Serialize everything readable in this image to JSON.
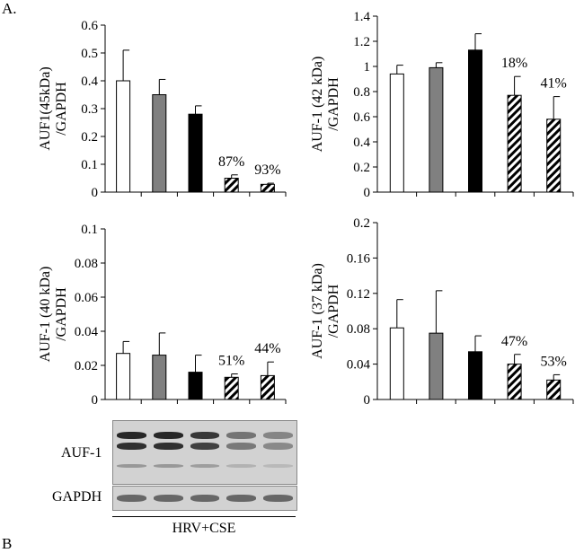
{
  "figure": {
    "panel_label": "A.",
    "next_panel_label": "B"
  },
  "colors": {
    "white": "#ffffff",
    "gray": "#808080",
    "black": "#000000",
    "hatched": "diagonal-hatch"
  },
  "chart_data": [
    {
      "type": "bar",
      "ylabel": [
        "AUF1(45kDa)",
        "/GAPDH"
      ],
      "ylim": [
        0,
        0.6
      ],
      "yticks": [
        "0",
        "0.1",
        "0.2",
        "0.3",
        "0.4",
        "0.5",
        "0.6"
      ],
      "values": [
        0.4,
        0.35,
        0.28,
        0.05,
        0.028
      ],
      "errors": [
        0.11,
        0.055,
        0.03,
        0.012,
        0.004
      ],
      "fills": [
        "white",
        "gray",
        "black",
        "hatched",
        "hatched"
      ],
      "annotations": [
        "",
        "",
        "",
        "87%",
        "93%"
      ]
    },
    {
      "type": "bar",
      "ylabel": [
        "AUF-1 (42 kDa)",
        "/GAPDH"
      ],
      "ylim": [
        0,
        1.4
      ],
      "yticks": [
        "0",
        "0.2",
        "0.4",
        "0.6",
        "0.8",
        "1",
        "1.2",
        "1.4"
      ],
      "values": [
        0.94,
        0.99,
        1.13,
        0.77,
        0.58
      ],
      "errors": [
        0.07,
        0.04,
        0.13,
        0.15,
        0.18
      ],
      "fills": [
        "white",
        "gray",
        "black",
        "hatched",
        "hatched"
      ],
      "annotations": [
        "",
        "",
        "",
        "18%",
        "41%"
      ]
    },
    {
      "type": "bar",
      "ylabel": [
        "AUF-1 (40 kDa)",
        "/GAPDH"
      ],
      "ylim": [
        0,
        0.1
      ],
      "yticks": [
        "0",
        "0.02",
        "0.04",
        "0.06",
        "0.08",
        "0.1"
      ],
      "values": [
        0.027,
        0.026,
        0.016,
        0.013,
        0.014
      ],
      "errors": [
        0.007,
        0.013,
        0.01,
        0.002,
        0.008
      ],
      "fills": [
        "white",
        "gray",
        "black",
        "hatched",
        "hatched"
      ],
      "annotations": [
        "",
        "",
        "",
        "51%",
        "44%"
      ]
    },
    {
      "type": "bar",
      "ylabel": [
        "AUF-1 (37 kDa)",
        "/GAPDH"
      ],
      "ylim": [
        0,
        0.2
      ],
      "yticks": [
        "0",
        "0.04",
        "0.08",
        "0.12",
        "0.16",
        "0.2"
      ],
      "values": [
        0.081,
        0.075,
        0.054,
        0.04,
        0.022
      ],
      "errors": [
        0.032,
        0.048,
        0.018,
        0.011,
        0.006
      ],
      "fills": [
        "white",
        "gray",
        "black",
        "hatched",
        "hatched"
      ],
      "annotations": [
        "",
        "",
        "",
        "47%",
        "53%"
      ]
    }
  ],
  "blot": {
    "rows": [
      {
        "label": "AUF-1",
        "intensity": [
          1.0,
          1.0,
          0.9,
          0.55,
          0.45
        ]
      },
      {
        "label": "GAPDH",
        "intensity": [
          0.7,
          0.7,
          0.7,
          0.7,
          0.7
        ]
      }
    ],
    "group_label": "HRV+CSE"
  }
}
